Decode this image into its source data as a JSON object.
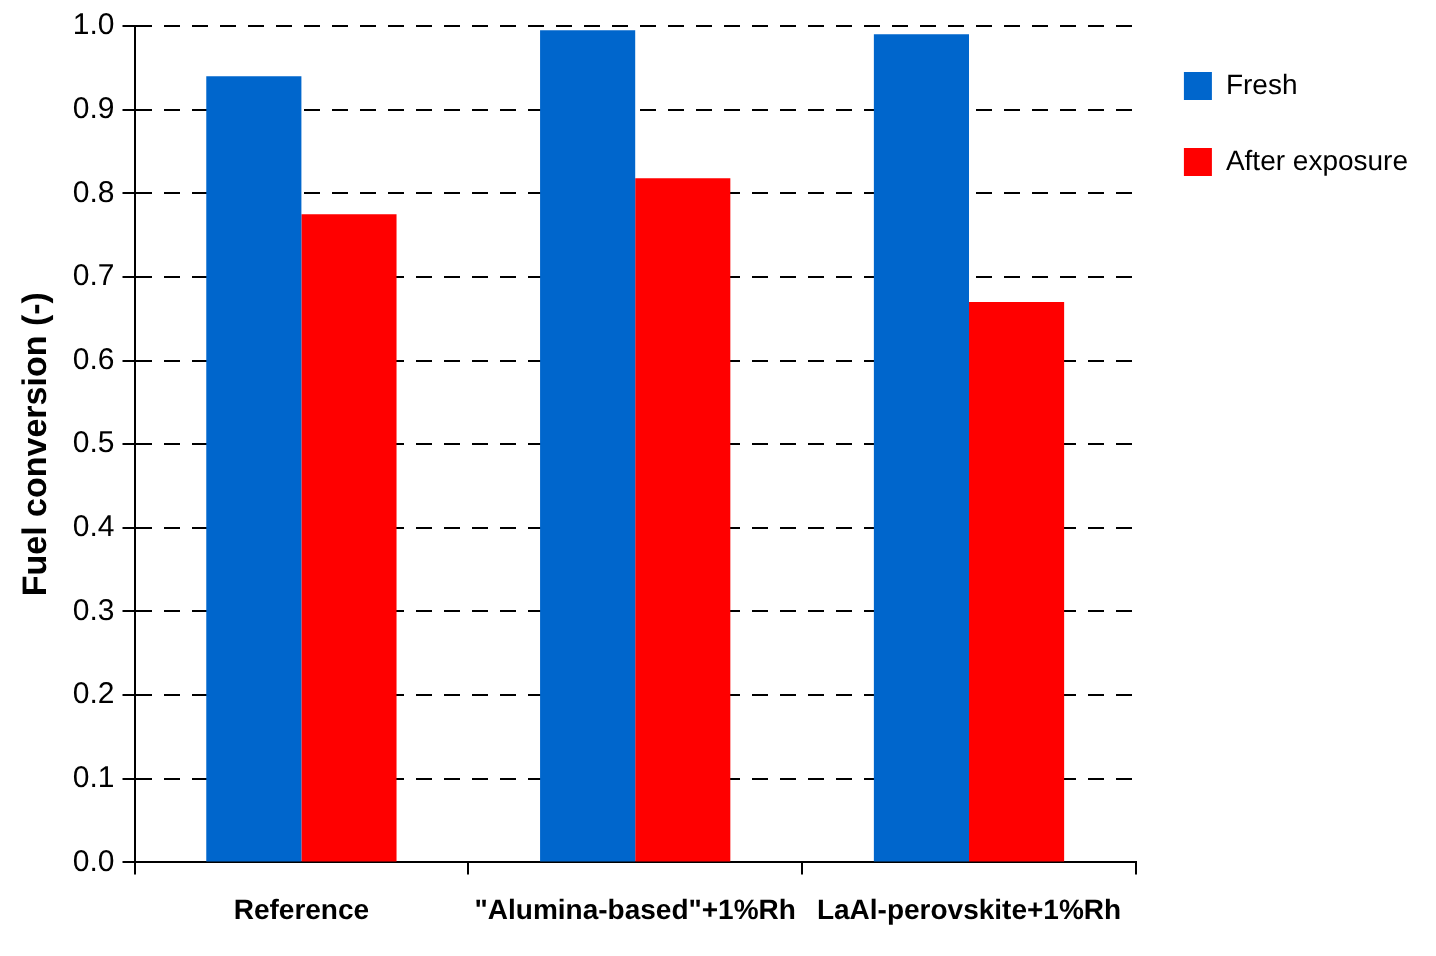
{
  "chart_data": {
    "type": "bar",
    "ylabel": "Fuel conversion (-)",
    "categories": [
      "Reference",
      "\"Alumina-based\"+1%Rh",
      "LaAl-perovskite+1%Rh"
    ],
    "series": [
      {
        "name": "Fresh",
        "color": "#0066cc",
        "values": [
          0.94,
          0.995,
          0.99
        ]
      },
      {
        "name": "After exposure",
        "color": "#ff0000",
        "values": [
          0.775,
          0.818,
          0.67
        ]
      }
    ],
    "ylim": [
      0,
      1
    ],
    "yticks": [
      {
        "value": 0,
        "label": "0.0"
      },
      0.1,
      0.2,
      0.3,
      0.4,
      0.5,
      0.6,
      0.7,
      0.8,
      0.9,
      {
        "value": 1,
        "label": "1.0"
      }
    ],
    "grid": "y",
    "legend": "right"
  }
}
